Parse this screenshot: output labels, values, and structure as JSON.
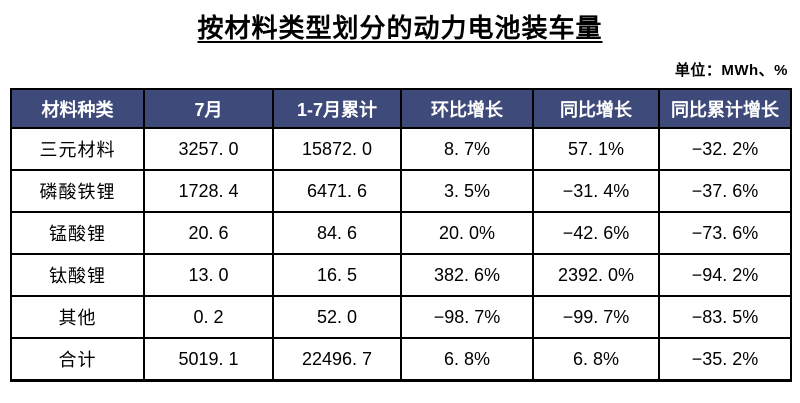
{
  "title": "按材料类型划分的动力电池装车量",
  "unit_label": "单位：MWh、%",
  "colors": {
    "header_bg": "#3e4a79",
    "header_text": "#ffffff",
    "border": "#000000",
    "body_text": "#000000",
    "page_bg": "#ffffff"
  },
  "table": {
    "headers": [
      "材料种类",
      "7月",
      "1-7月累计",
      "环比增长",
      "同比增长",
      "同比累计增长"
    ],
    "rows": [
      [
        "三元材料",
        "3257. 0",
        "15872. 0",
        "8. 7%",
        "57. 1%",
        "−32. 2%"
      ],
      [
        "磷酸铁锂",
        "1728. 4",
        "6471. 6",
        "3. 5%",
        "−31. 4%",
        "−37. 6%"
      ],
      [
        "锰酸锂",
        "20. 6",
        "84. 6",
        "20. 0%",
        "−42. 6%",
        "−73. 6%"
      ],
      [
        "钛酸锂",
        "13. 0",
        "16. 5",
        "382. 6%",
        "2392. 0%",
        "−94. 2%"
      ],
      [
        "其他",
        "0. 2",
        "52. 0",
        "−98. 7%",
        "−99. 7%",
        "−83. 5%"
      ],
      [
        "合计",
        "5019. 1",
        "22496. 7",
        "6. 8%",
        "6. 8%",
        "−35. 2%"
      ]
    ]
  },
  "chart_data": {
    "type": "table",
    "title": "按材料类型划分的动力电池装车量",
    "unit": "MWh、%",
    "columns": [
      "材料种类",
      "7月",
      "1-7月累计",
      "环比增长",
      "同比增长",
      "同比累计增长"
    ],
    "rows": [
      {
        "material": "三元材料",
        "july_mwh": 3257.0,
        "jan_jul_cumulative_mwh": 15872.0,
        "mom_growth_pct": 8.7,
        "yoy_growth_pct": 57.1,
        "yoy_cumulative_growth_pct": -32.2
      },
      {
        "material": "磷酸铁锂",
        "july_mwh": 1728.4,
        "jan_jul_cumulative_mwh": 6471.6,
        "mom_growth_pct": 3.5,
        "yoy_growth_pct": -31.4,
        "yoy_cumulative_growth_pct": -37.6
      },
      {
        "material": "锰酸锂",
        "july_mwh": 20.6,
        "jan_jul_cumulative_mwh": 84.6,
        "mom_growth_pct": 20.0,
        "yoy_growth_pct": -42.6,
        "yoy_cumulative_growth_pct": -73.6
      },
      {
        "material": "钛酸锂",
        "july_mwh": 13.0,
        "jan_jul_cumulative_mwh": 16.5,
        "mom_growth_pct": 382.6,
        "yoy_growth_pct": 2392.0,
        "yoy_cumulative_growth_pct": -94.2
      },
      {
        "material": "其他",
        "july_mwh": 0.2,
        "jan_jul_cumulative_mwh": 52.0,
        "mom_growth_pct": -98.7,
        "yoy_growth_pct": -99.7,
        "yoy_cumulative_growth_pct": -83.5
      },
      {
        "material": "合计",
        "july_mwh": 5019.1,
        "jan_jul_cumulative_mwh": 22496.7,
        "mom_growth_pct": 6.8,
        "yoy_growth_pct": 6.8,
        "yoy_cumulative_growth_pct": -35.2
      }
    ]
  }
}
